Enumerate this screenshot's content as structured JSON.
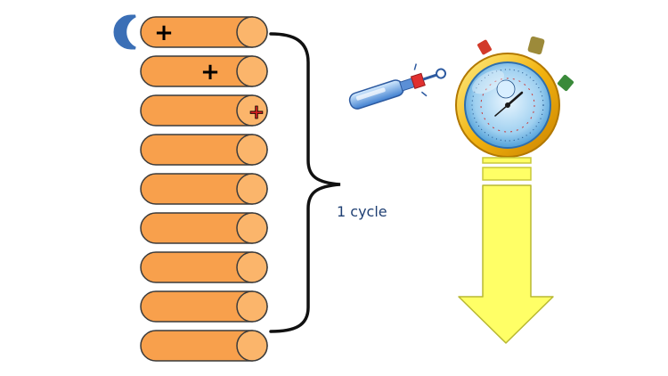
{
  "diagram": {
    "cycle_label": "1 cycle",
    "plus_symbol": "+",
    "cylinders": [
      {
        "index": 1,
        "has_plus": true,
        "plus_style": "black-left"
      },
      {
        "index": 2,
        "has_plus": true,
        "plus_style": "black-middle"
      },
      {
        "index": 3,
        "has_plus": true,
        "plus_style": "red-black-end"
      },
      {
        "index": 4,
        "has_plus": false
      },
      {
        "index": 5,
        "has_plus": false
      },
      {
        "index": 6,
        "has_plus": false
      },
      {
        "index": 7,
        "has_plus": false
      },
      {
        "index": 8,
        "has_plus": false
      },
      {
        "index": 9,
        "has_plus": false
      }
    ],
    "icons": [
      "half-circle-icon",
      "screwdriver-icon",
      "stopwatch-icon",
      "down-arrow-icon",
      "curly-brace-icon"
    ]
  },
  "colors": {
    "cylinder_fill": "#f8a04c",
    "cylinder_stroke": "#3b3b3b",
    "cylinder_cap": "#fbb56b",
    "arrow_fill": "#ffff66",
    "arrow_stroke": "#c9c93a",
    "half_circle": "#3b6fb6",
    "label_text": "#1f3f73"
  }
}
